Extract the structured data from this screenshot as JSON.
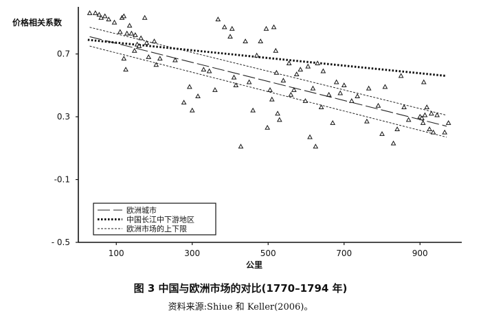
{
  "chart_data": {
    "type": "scatter",
    "ylabel": "价格相关系数",
    "xlabel": "公里",
    "xlim": [
      0,
      1010
    ],
    "ylim": [
      -0.5,
      1.0
    ],
    "x_ticks": [
      100,
      300,
      500,
      700,
      900
    ],
    "y_ticks": [
      0.7,
      0.3,
      -0.1,
      -0.5
    ],
    "y_tick_labels": [
      "0.7",
      "0.3",
      "-0.1",
      "- 0.5"
    ],
    "legend_position": "bottom-left",
    "legend": [
      {
        "label": "欧洲城市",
        "style": "long-dash"
      },
      {
        "label": "中国长江中下游地区",
        "style": "thick-dotted"
      },
      {
        "label": "欧洲市场的上下限",
        "style": "fine-dotted"
      }
    ],
    "lines": [
      {
        "style": "long-dash",
        "x": [
          30,
          970
        ],
        "y": [
          0.81,
          0.24
        ]
      },
      {
        "style": "thick-dotted",
        "x": [
          25,
          970
        ],
        "y": [
          0.79,
          0.56
        ]
      },
      {
        "style": "fine-dotted",
        "x": [
          30,
          970
        ],
        "y": [
          0.87,
          0.31
        ]
      },
      {
        "style": "fine-dotted",
        "x": [
          30,
          970
        ],
        "y": [
          0.75,
          0.17
        ]
      }
    ],
    "points": [
      {
        "x": 30,
        "y": 0.96
      },
      {
        "x": 45,
        "y": 0.96
      },
      {
        "x": 55,
        "y": 0.95
      },
      {
        "x": 60,
        "y": 0.93
      },
      {
        "x": 70,
        "y": 0.94
      },
      {
        "x": 80,
        "y": 0.92
      },
      {
        "x": 95,
        "y": 0.9
      },
      {
        "x": 110,
        "y": 0.84
      },
      {
        "x": 115,
        "y": 0.93
      },
      {
        "x": 120,
        "y": 0.94
      },
      {
        "x": 128,
        "y": 0.83
      },
      {
        "x": 135,
        "y": 0.88
      },
      {
        "x": 140,
        "y": 0.83
      },
      {
        "x": 150,
        "y": 0.82
      },
      {
        "x": 155,
        "y": 0.76
      },
      {
        "x": 160,
        "y": 0.75
      },
      {
        "x": 165,
        "y": 0.8
      },
      {
        "x": 175,
        "y": 0.93
      },
      {
        "x": 180,
        "y": 0.77
      },
      {
        "x": 185,
        "y": 0.68
      },
      {
        "x": 200,
        "y": 0.78
      },
      {
        "x": 215,
        "y": 0.67
      },
      {
        "x": 120,
        "y": 0.67
      },
      {
        "x": 125,
        "y": 0.6
      },
      {
        "x": 148,
        "y": 0.72
      },
      {
        "x": 205,
        "y": 0.63
      },
      {
        "x": 255,
        "y": 0.66
      },
      {
        "x": 278,
        "y": 0.39
      },
      {
        "x": 293,
        "y": 0.49
      },
      {
        "x": 300,
        "y": 0.34
      },
      {
        "x": 315,
        "y": 0.43
      },
      {
        "x": 330,
        "y": 0.6
      },
      {
        "x": 345,
        "y": 0.59
      },
      {
        "x": 360,
        "y": 0.47
      },
      {
        "x": 368,
        "y": 0.92
      },
      {
        "x": 385,
        "y": 0.87
      },
      {
        "x": 400,
        "y": 0.81
      },
      {
        "x": 405,
        "y": 0.86
      },
      {
        "x": 410,
        "y": 0.55
      },
      {
        "x": 415,
        "y": 0.5
      },
      {
        "x": 428,
        "y": 0.11
      },
      {
        "x": 440,
        "y": 0.78
      },
      {
        "x": 450,
        "y": 0.52
      },
      {
        "x": 460,
        "y": 0.34
      },
      {
        "x": 470,
        "y": 0.69
      },
      {
        "x": 480,
        "y": 0.78
      },
      {
        "x": 495,
        "y": 0.86
      },
      {
        "x": 498,
        "y": 0.23
      },
      {
        "x": 505,
        "y": 0.47
      },
      {
        "x": 510,
        "y": 0.41
      },
      {
        "x": 515,
        "y": 0.87
      },
      {
        "x": 520,
        "y": 0.72
      },
      {
        "x": 522,
        "y": 0.58
      },
      {
        "x": 525,
        "y": 0.32
      },
      {
        "x": 530,
        "y": 0.28
      },
      {
        "x": 540,
        "y": 0.53
      },
      {
        "x": 555,
        "y": 0.64
      },
      {
        "x": 560,
        "y": 0.44
      },
      {
        "x": 568,
        "y": 0.47
      },
      {
        "x": 575,
        "y": 0.57
      },
      {
        "x": 585,
        "y": 0.6
      },
      {
        "x": 598,
        "y": 0.4
      },
      {
        "x": 605,
        "y": 0.62
      },
      {
        "x": 610,
        "y": 0.17
      },
      {
        "x": 618,
        "y": 0.48
      },
      {
        "x": 625,
        "y": 0.11
      },
      {
        "x": 630,
        "y": 0.64
      },
      {
        "x": 640,
        "y": 0.36
      },
      {
        "x": 645,
        "y": 0.59
      },
      {
        "x": 660,
        "y": 0.44
      },
      {
        "x": 670,
        "y": 0.26
      },
      {
        "x": 680,
        "y": 0.52
      },
      {
        "x": 690,
        "y": 0.45
      },
      {
        "x": 700,
        "y": 0.5
      },
      {
        "x": 720,
        "y": 0.4
      },
      {
        "x": 735,
        "y": 0.43
      },
      {
        "x": 760,
        "y": 0.27
      },
      {
        "x": 765,
        "y": 0.48
      },
      {
        "x": 790,
        "y": 0.37
      },
      {
        "x": 800,
        "y": 0.19
      },
      {
        "x": 808,
        "y": 0.49
      },
      {
        "x": 830,
        "y": 0.13
      },
      {
        "x": 840,
        "y": 0.22
      },
      {
        "x": 850,
        "y": 0.56
      },
      {
        "x": 858,
        "y": 0.36
      },
      {
        "x": 870,
        "y": 0.28
      },
      {
        "x": 900,
        "y": 0.3
      },
      {
        "x": 905,
        "y": 0.29
      },
      {
        "x": 908,
        "y": 0.26
      },
      {
        "x": 910,
        "y": 0.52
      },
      {
        "x": 913,
        "y": 0.31
      },
      {
        "x": 918,
        "y": 0.36
      },
      {
        "x": 925,
        "y": 0.22
      },
      {
        "x": 930,
        "y": 0.32
      },
      {
        "x": 935,
        "y": 0.2
      },
      {
        "x": 945,
        "y": 0.31
      },
      {
        "x": 965,
        "y": 0.2
      },
      {
        "x": 975,
        "y": 0.26
      }
    ]
  },
  "caption": {
    "title": "图 3    中国与欧洲市场的对比(1770–1794 年)",
    "source": "资料来源:Shiue 和 Keller(2006)。"
  }
}
